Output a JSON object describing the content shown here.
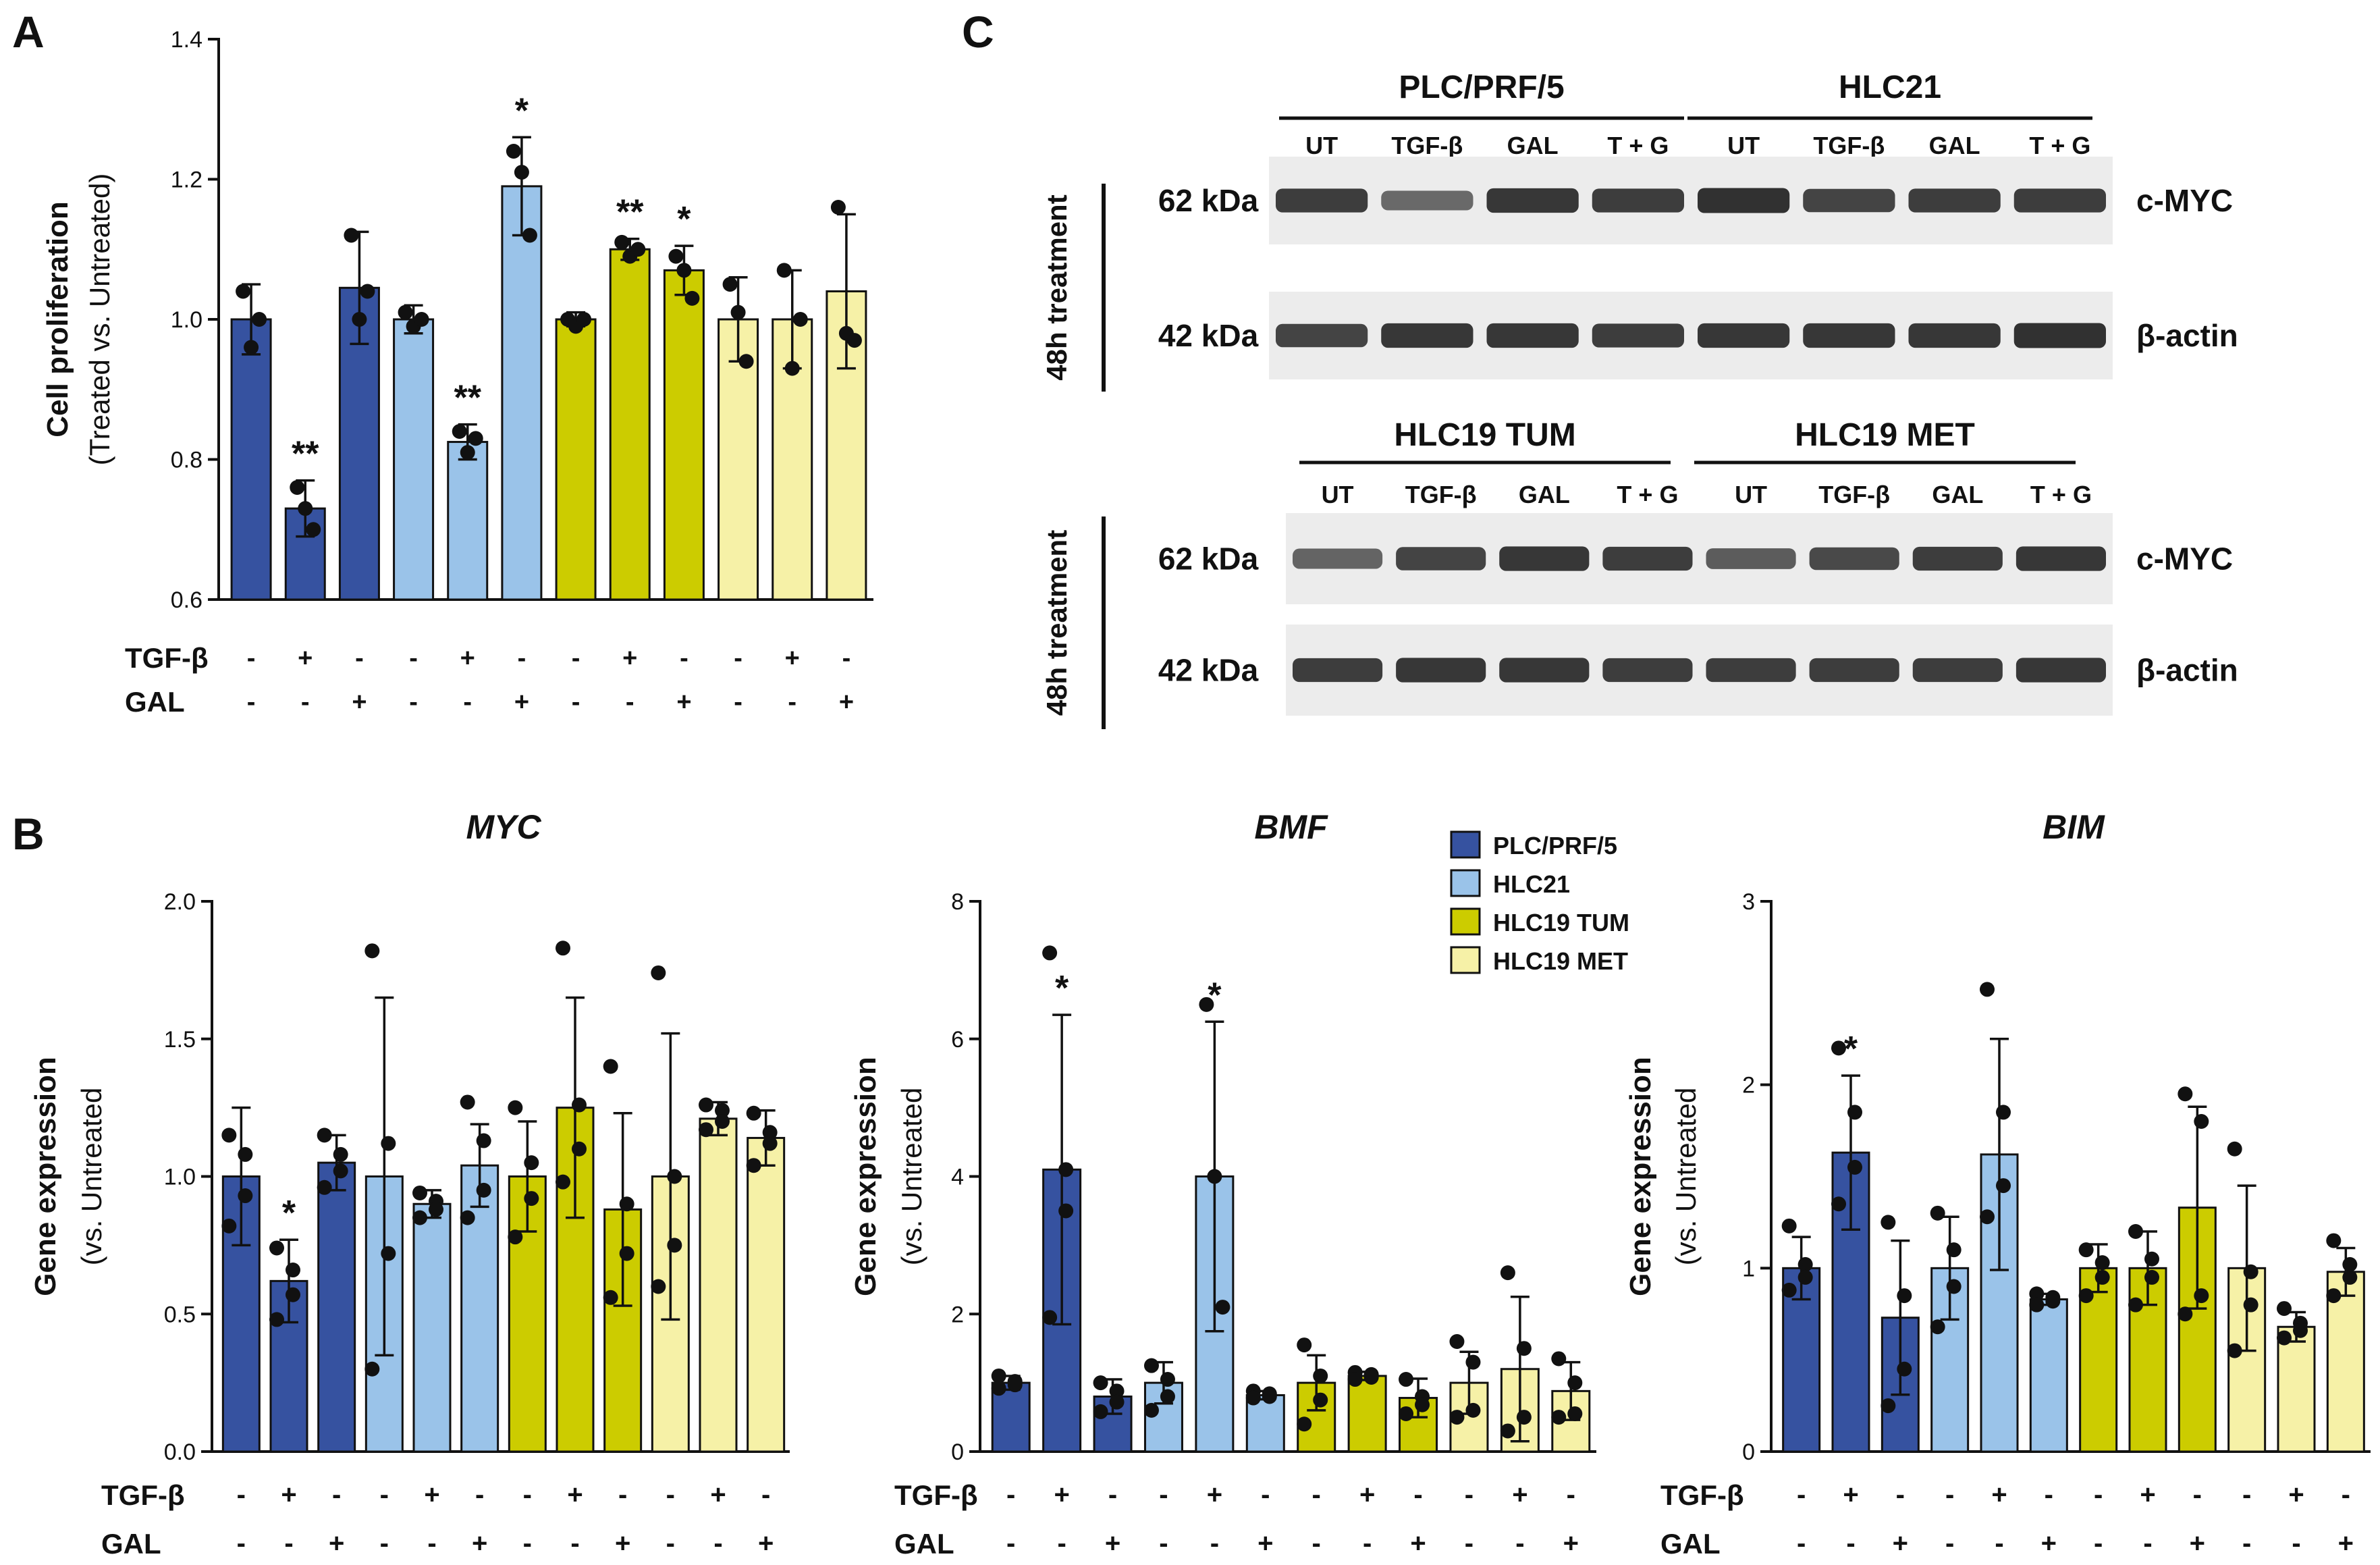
{
  "colors": {
    "plc": "#3652a0",
    "hlc21": "#9ac3e9",
    "tum": "#cccc00",
    "met": "#f6f1a7",
    "ink": "#111111",
    "blot_bg": "#ececec",
    "band": "#2a2a2a"
  },
  "panel_labels": {
    "a": "A",
    "b": "B",
    "c": "C"
  },
  "treatment_labels": {
    "tgf": "TGF-β",
    "gal": "GAL"
  },
  "legend": {
    "position": "top-right of BMF plot",
    "entries": [
      {
        "label": "PLC/PRF/5",
        "color": "#3652a0"
      },
      {
        "label": "HLC21",
        "color": "#9ac3e9"
      },
      {
        "label": "HLC19 TUM",
        "color": "#cccc00"
      },
      {
        "label": "HLC19 MET",
        "color": "#f6f1a7"
      }
    ]
  },
  "chart_data": [
    {
      "id": "A",
      "type": "bar",
      "ylabel": "Cell proliferation",
      "ylabel2": "(Treated vs. Untreated)",
      "ylim": [
        0.6,
        1.4
      ],
      "ticks": [
        0.6,
        0.8,
        1.0,
        1.2,
        1.4
      ],
      "tick_labels": [
        "0.6",
        "0.8",
        "1.0",
        "1.2",
        "1.4"
      ],
      "tgf": [
        "-",
        "+",
        "-",
        "-",
        "+",
        "-",
        "-",
        "+",
        "-",
        "-",
        "+",
        "-"
      ],
      "gal": [
        "-",
        "-",
        "+",
        "-",
        "-",
        "+",
        "-",
        "-",
        "+",
        "-",
        "-",
        "+"
      ],
      "bars": [
        {
          "group": "plc",
          "value": 1.0,
          "err": 0.05,
          "sig": "",
          "points": [
            1.04,
            0.96,
            1.0
          ]
        },
        {
          "group": "plc",
          "value": 0.73,
          "err": 0.04,
          "sig": "**",
          "points": [
            0.76,
            0.73,
            0.7
          ]
        },
        {
          "group": "plc",
          "value": 1.045,
          "err": 0.08,
          "sig": "",
          "points": [
            1.12,
            1.0,
            1.04
          ]
        },
        {
          "group": "hlc21",
          "value": 1.0,
          "err": 0.02,
          "sig": "",
          "points": [
            1.01,
            0.99,
            1.0
          ]
        },
        {
          "group": "hlc21",
          "value": 0.825,
          "err": 0.025,
          "sig": "**",
          "points": [
            0.84,
            0.81,
            0.83
          ]
        },
        {
          "group": "hlc21",
          "value": 1.19,
          "err": 0.07,
          "sig": "*",
          "points": [
            1.24,
            1.21,
            1.12
          ]
        },
        {
          "group": "tum",
          "value": 1.0,
          "err": 0.01,
          "sig": "",
          "points": [
            1.0,
            0.99,
            1.0
          ]
        },
        {
          "group": "tum",
          "value": 1.1,
          "err": 0.015,
          "sig": "**",
          "points": [
            1.11,
            1.09,
            1.1
          ]
        },
        {
          "group": "tum",
          "value": 1.07,
          "err": 0.035,
          "sig": "*",
          "points": [
            1.09,
            1.07,
            1.03
          ]
        },
        {
          "group": "met",
          "value": 1.0,
          "err": 0.06,
          "sig": "",
          "points": [
            1.05,
            1.01,
            0.94
          ]
        },
        {
          "group": "met",
          "value": 1.0,
          "err": 0.07,
          "sig": "",
          "points": [
            1.07,
            0.93,
            1.0
          ]
        },
        {
          "group": "met",
          "value": 1.04,
          "err": 0.11,
          "sig": "",
          "points": [
            1.16,
            0.98,
            0.97
          ]
        }
      ]
    },
    {
      "id": "MYC",
      "type": "bar",
      "title": "MYC",
      "ylabel": "Gene expression",
      "ylabel2": "(vs. Untreated",
      "ylim": [
        0,
        2.0
      ],
      "ticks": [
        0,
        0.5,
        1.0,
        1.5,
        2.0
      ],
      "tick_labels": [
        "0.0",
        "0.5",
        "1.0",
        "1.5",
        "2.0"
      ],
      "tgf": [
        "-",
        "+",
        "-",
        "-",
        "+",
        "-",
        "-",
        "+",
        "-",
        "-",
        "+",
        "-"
      ],
      "gal": [
        "-",
        "-",
        "+",
        "-",
        "-",
        "+",
        "-",
        "-",
        "+",
        "-",
        "-",
        "+"
      ],
      "bars": [
        {
          "group": "plc",
          "value": 1.0,
          "err": 0.25,
          "sig": "",
          "points": [
            1.15,
            1.08,
            0.93,
            0.82
          ]
        },
        {
          "group": "plc",
          "value": 0.62,
          "err": 0.15,
          "sig": "*",
          "points": [
            0.74,
            0.66,
            0.57,
            0.48
          ]
        },
        {
          "group": "plc",
          "value": 1.05,
          "err": 0.1,
          "sig": "",
          "points": [
            1.15,
            1.08,
            1.02,
            0.96
          ]
        },
        {
          "group": "hlc21",
          "value": 1.0,
          "err": 0.65,
          "sig": "",
          "points": [
            1.82,
            1.12,
            0.72,
            0.3
          ]
        },
        {
          "group": "hlc21",
          "value": 0.9,
          "err": 0.05,
          "sig": "",
          "points": [
            0.94,
            0.91,
            0.88,
            0.85
          ]
        },
        {
          "group": "hlc21",
          "value": 1.04,
          "err": 0.15,
          "sig": "",
          "points": [
            1.27,
            1.13,
            0.95,
            0.85
          ]
        },
        {
          "group": "tum",
          "value": 1.0,
          "err": 0.2,
          "sig": "",
          "points": [
            1.25,
            1.05,
            0.92,
            0.78
          ]
        },
        {
          "group": "tum",
          "value": 1.25,
          "err": 0.4,
          "sig": "",
          "points": [
            1.83,
            1.26,
            1.1,
            0.98
          ]
        },
        {
          "group": "tum",
          "value": 0.88,
          "err": 0.35,
          "sig": "",
          "points": [
            1.4,
            0.9,
            0.72,
            0.56
          ]
        },
        {
          "group": "met",
          "value": 1.0,
          "err": 0.52,
          "sig": "",
          "points": [
            1.74,
            1.0,
            0.75,
            0.6
          ]
        },
        {
          "group": "met",
          "value": 1.21,
          "err": 0.06,
          "sig": "",
          "points": [
            1.26,
            1.24,
            1.2,
            1.17
          ]
        },
        {
          "group": "met",
          "value": 1.14,
          "err": 0.1,
          "sig": "",
          "points": [
            1.23,
            1.16,
            1.12,
            1.04
          ]
        }
      ]
    },
    {
      "id": "BMF",
      "type": "bar",
      "title": "BMF",
      "ylabel": "Gene expression",
      "ylabel2": "(vs. Untreated",
      "ylim": [
        0,
        8
      ],
      "ticks": [
        0,
        2,
        4,
        6,
        8
      ],
      "tick_labels": [
        "0",
        "2",
        "4",
        "6",
        "8"
      ],
      "tgf": [
        "-",
        "+",
        "-",
        "-",
        "+",
        "-",
        "-",
        "+",
        "-",
        "-",
        "+",
        "-"
      ],
      "gal": [
        "-",
        "-",
        "+",
        "-",
        "-",
        "+",
        "-",
        "-",
        "+",
        "-",
        "-",
        "+"
      ],
      "bars": [
        {
          "group": "plc",
          "value": 1.0,
          "err": 0.1,
          "sig": "",
          "points": [
            1.1,
            1.02,
            0.97,
            0.92
          ]
        },
        {
          "group": "plc",
          "value": 4.1,
          "err": 2.25,
          "sig": "*",
          "points": [
            7.25,
            4.1,
            3.5,
            1.95
          ]
        },
        {
          "group": "plc",
          "value": 0.8,
          "err": 0.25,
          "sig": "",
          "points": [
            1.0,
            0.88,
            0.72,
            0.58
          ]
        },
        {
          "group": "hlc21",
          "value": 1.0,
          "err": 0.3,
          "sig": "",
          "points": [
            1.25,
            1.05,
            0.8,
            0.6
          ]
        },
        {
          "group": "hlc21",
          "value": 4.0,
          "err": 2.25,
          "sig": "*",
          "points": [
            6.5,
            4.0,
            2.1
          ]
        },
        {
          "group": "hlc21",
          "value": 0.82,
          "err": 0.06,
          "sig": "",
          "points": [
            0.88,
            0.84,
            0.8,
            0.78
          ]
        },
        {
          "group": "tum",
          "value": 1.0,
          "err": 0.4,
          "sig": "",
          "points": [
            1.55,
            1.1,
            0.75,
            0.4
          ]
        },
        {
          "group": "tum",
          "value": 1.1,
          "err": 0.06,
          "sig": "",
          "points": [
            1.15,
            1.12,
            1.08,
            1.05
          ]
        },
        {
          "group": "tum",
          "value": 0.78,
          "err": 0.28,
          "sig": "",
          "points": [
            1.05,
            0.8,
            0.68,
            0.55
          ]
        },
        {
          "group": "met",
          "value": 1.0,
          "err": 0.45,
          "sig": "",
          "points": [
            1.6,
            1.3,
            0.6,
            0.5
          ]
        },
        {
          "group": "met",
          "value": 1.2,
          "err": 1.05,
          "sig": "",
          "points": [
            2.6,
            1.5,
            0.5,
            0.3
          ]
        },
        {
          "group": "met",
          "value": 0.88,
          "err": 0.42,
          "sig": "",
          "points": [
            1.35,
            1.0,
            0.55,
            0.5
          ]
        }
      ]
    },
    {
      "id": "BIM",
      "type": "bar",
      "title": "BIM",
      "ylabel": "Gene expression",
      "ylabel2": "(vs. Untreated",
      "ylim": [
        0,
        3
      ],
      "ticks": [
        0,
        1,
        2,
        3
      ],
      "tick_labels": [
        "0",
        "1",
        "2",
        "3"
      ],
      "tgf": [
        "-",
        "+",
        "-",
        "-",
        "+",
        "-",
        "-",
        "+",
        "-",
        "-",
        "+",
        "-"
      ],
      "gal": [
        "-",
        "-",
        "+",
        "-",
        "-",
        "+",
        "-",
        "-",
        "+",
        "-",
        "-",
        "+"
      ],
      "bars": [
        {
          "group": "plc",
          "value": 1.0,
          "err": 0.17,
          "sig": "",
          "points": [
            1.23,
            1.02,
            0.95,
            0.88
          ]
        },
        {
          "group": "plc",
          "value": 1.63,
          "err": 0.42,
          "sig": "*",
          "points": [
            2.2,
            1.85,
            1.55,
            1.35
          ]
        },
        {
          "group": "plc",
          "value": 0.73,
          "err": 0.42,
          "sig": "",
          "points": [
            1.25,
            0.85,
            0.45,
            0.25
          ]
        },
        {
          "group": "hlc21",
          "value": 1.0,
          "err": 0.28,
          "sig": "",
          "points": [
            1.3,
            1.1,
            0.9,
            0.68
          ]
        },
        {
          "group": "hlc21",
          "value": 1.62,
          "err": 0.63,
          "sig": "",
          "points": [
            2.52,
            1.85,
            1.45,
            1.28
          ]
        },
        {
          "group": "hlc21",
          "value": 0.83,
          "err": 0.03,
          "sig": "",
          "points": [
            0.86,
            0.84,
            0.82,
            0.8
          ]
        },
        {
          "group": "tum",
          "value": 1.0,
          "err": 0.13,
          "sig": "",
          "points": [
            1.1,
            1.03,
            0.95,
            0.85
          ]
        },
        {
          "group": "tum",
          "value": 1.0,
          "err": 0.2,
          "sig": "",
          "points": [
            1.2,
            1.05,
            0.95,
            0.8
          ]
        },
        {
          "group": "tum",
          "value": 1.33,
          "err": 0.55,
          "sig": "",
          "points": [
            1.95,
            1.8,
            0.85,
            0.75
          ]
        },
        {
          "group": "met",
          "value": 1.0,
          "err": 0.45,
          "sig": "",
          "points": [
            1.65,
            0.98,
            0.8,
            0.55
          ]
        },
        {
          "group": "met",
          "value": 0.68,
          "err": 0.08,
          "sig": "",
          "points": [
            0.78,
            0.7,
            0.66,
            0.62
          ]
        },
        {
          "group": "met",
          "value": 0.98,
          "err": 0.13,
          "sig": "",
          "points": [
            1.15,
            1.02,
            0.95,
            0.85
          ]
        }
      ]
    }
  ],
  "blots": [
    {
      "id": "top",
      "side_label": "48h treatment",
      "groups": [
        {
          "label": "PLC/PRF/5"
        },
        {
          "label": "HLC21"
        }
      ],
      "lanes": [
        "UT",
        "TGF-β",
        "GAL",
        "T + G",
        "UT",
        "TGF-β",
        "GAL",
        "T + G"
      ],
      "rows": [
        {
          "kda": "62 kDa",
          "protein": "c-MYC",
          "intensity": [
            0.85,
            0.5,
            0.9,
            0.85,
            0.95,
            0.8,
            0.85,
            0.85
          ]
        },
        {
          "kda": "42 kDa",
          "protein": "β-actin",
          "intensity": [
            0.8,
            0.9,
            0.9,
            0.85,
            0.9,
            0.9,
            0.9,
            0.95
          ]
        }
      ]
    },
    {
      "id": "bottom",
      "side_label": "48h treatment",
      "groups": [
        {
          "label": "HLC19 TUM"
        },
        {
          "label": "HLC19 MET"
        }
      ],
      "lanes": [
        "UT",
        "TGF-β",
        "GAL",
        "T + G",
        "UT",
        "TGF-β",
        "GAL",
        "T + G"
      ],
      "rows": [
        {
          "kda": "62 kDa",
          "protein": "c-MYC",
          "intensity": [
            0.55,
            0.8,
            0.9,
            0.85,
            0.6,
            0.75,
            0.85,
            0.9
          ]
        },
        {
          "kda": "42 kDa",
          "protein": "β-actin",
          "intensity": [
            0.85,
            0.9,
            0.9,
            0.85,
            0.85,
            0.85,
            0.85,
            0.9
          ]
        }
      ]
    }
  ]
}
